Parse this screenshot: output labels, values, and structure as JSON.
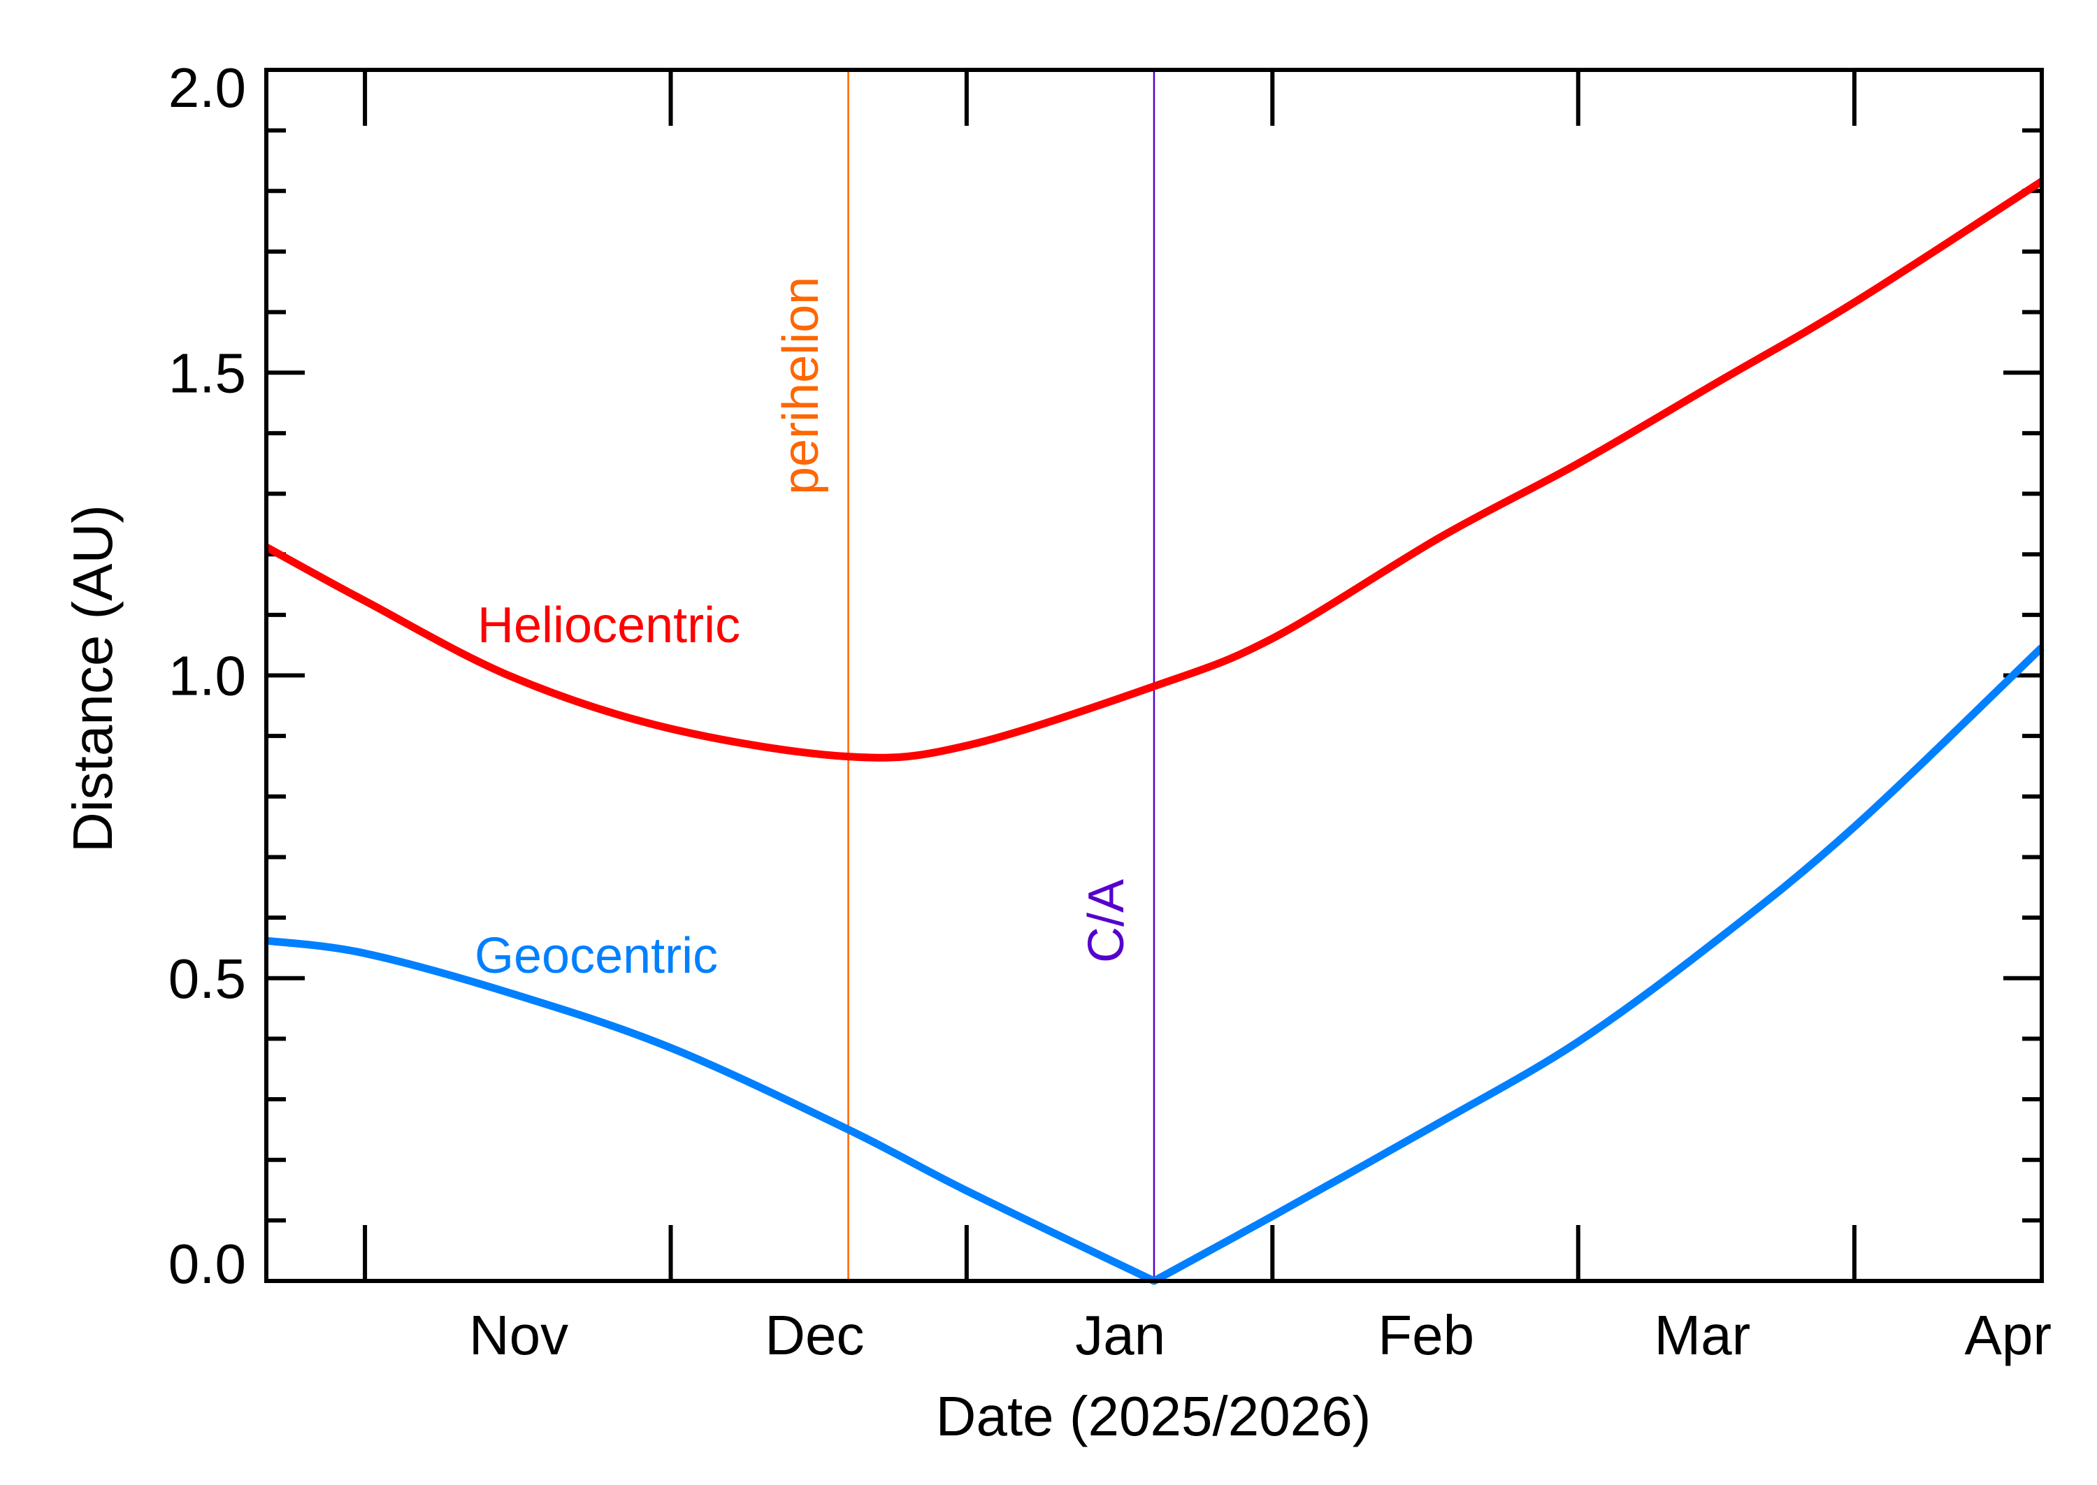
{
  "chart_data": {
    "type": "line",
    "title": "",
    "xlabel": "Date (2025/2026)",
    "ylabel": "Distance (AU)",
    "xlim": [
      "2025-10-05",
      "2026-04-03"
    ],
    "ylim": [
      0.0,
      2.0
    ],
    "grid": false,
    "x_tick_labels": [
      {
        "label": "Nov",
        "date": "2025-11-01"
      },
      {
        "label": "Dec",
        "date": "2025-12-01"
      },
      {
        "label": "Jan",
        "date": "2026-01-01"
      },
      {
        "label": "Feb",
        "date": "2026-02-01"
      },
      {
        "label": "Mar",
        "date": "2026-03-01"
      },
      {
        "label": "Apr",
        "date": "2026-04-01"
      }
    ],
    "x_major_ticks": [
      "2025-10-15",
      "2025-11-15",
      "2025-12-15",
      "2026-01-15",
      "2026-02-15",
      "2026-03-15"
    ],
    "y_tick_labels": [
      "0.0",
      "0.5",
      "1.0",
      "1.5",
      "2.0"
    ],
    "y_major_step": 0.5,
    "y_minor_step": 0.1,
    "series": [
      {
        "name": "Heliocentric",
        "color": "#ff0000",
        "x": [
          "2025-10-05",
          "2025-10-15",
          "2025-10-30",
          "2025-11-15",
          "2025-12-03",
          "2025-12-15",
          "2026-01-03",
          "2026-01-15",
          "2026-02-01",
          "2026-02-15",
          "2026-03-01",
          "2026-03-15",
          "2026-04-03"
        ],
        "y": [
          1.212,
          1.123,
          0.997,
          0.912,
          0.866,
          0.884,
          0.982,
          1.061,
          1.228,
          1.35,
          1.483,
          1.616,
          1.816
        ]
      },
      {
        "name": "Geocentric",
        "color": "#0080ff",
        "x": [
          "2025-10-05",
          "2025-10-15",
          "2025-10-30",
          "2025-11-15",
          "2025-12-03",
          "2025-12-15",
          "2026-01-03",
          "2026-01-15",
          "2026-02-01",
          "2026-02-15",
          "2026-03-01",
          "2026-03-15",
          "2026-04-03"
        ],
        "y": [
          0.562,
          0.541,
          0.474,
          0.385,
          0.25,
          0.149,
          0.0,
          0.107,
          0.262,
          0.395,
          0.562,
          0.75,
          1.046
        ]
      }
    ],
    "annotations": [
      {
        "label": "perihelion",
        "date": "2025-12-03",
        "color": "#ff6600"
      },
      {
        "label": "C/A",
        "date": "2026-01-03",
        "color": "#5500cc"
      }
    ]
  }
}
